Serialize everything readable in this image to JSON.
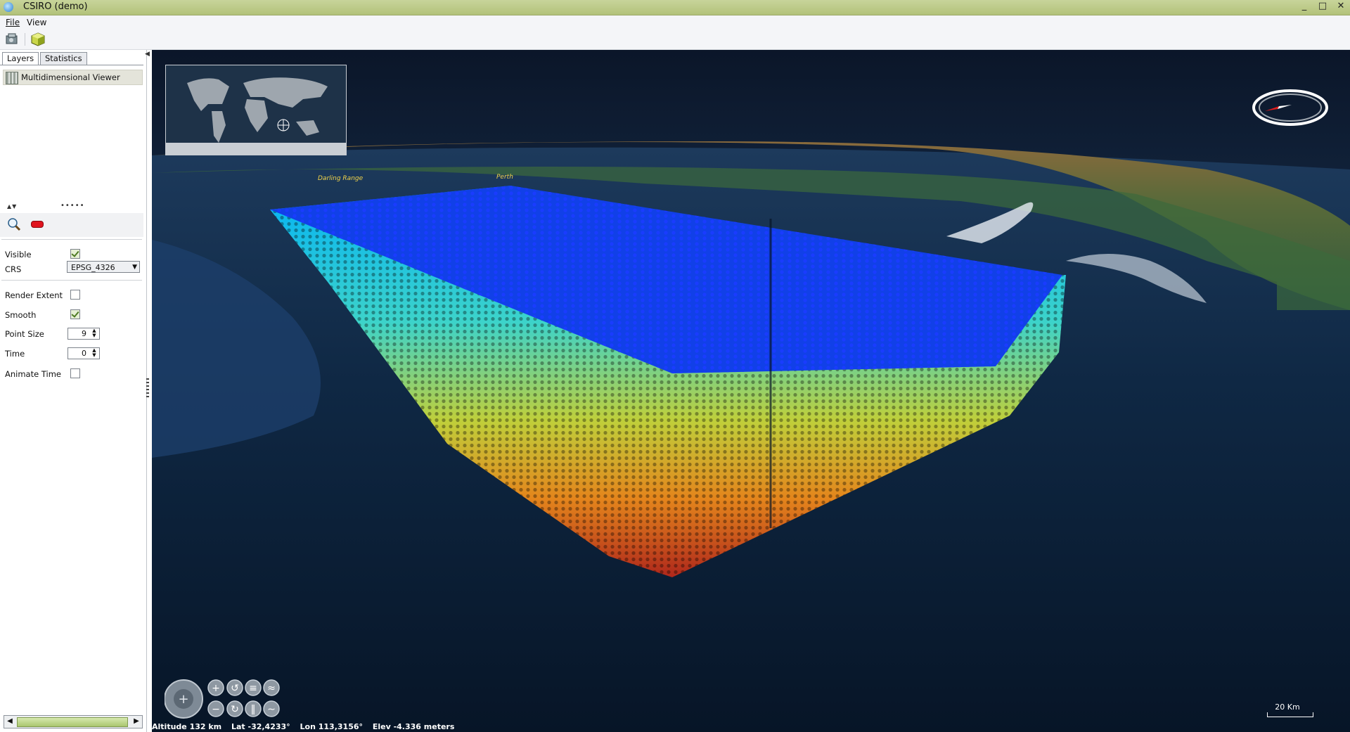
{
  "window": {
    "title": "CSIRO (demo)",
    "controls": [
      "_",
      "□",
      "✕"
    ]
  },
  "menu": {
    "file": "File",
    "view": "View"
  },
  "toolbar": {
    "btn1": "open-data-icon",
    "btn2": "cube-icon"
  },
  "left_panel": {
    "tabs": [
      {
        "label": "Layers",
        "active": true
      },
      {
        "label": "Statistics",
        "active": false
      }
    ],
    "layers": [
      {
        "label": "Multidimensional Viewer"
      }
    ],
    "properties": {
      "visible": {
        "label": "Visible",
        "checked": true
      },
      "crs": {
        "label": "CRS",
        "value": "EPSG_4326"
      },
      "render_extent": {
        "label": "Render Extent",
        "checked": false
      },
      "smooth": {
        "label": "Smooth",
        "checked": true
      },
      "point_size": {
        "label": "Point Size",
        "value": "9"
      },
      "time": {
        "label": "Time",
        "value": "0"
      },
      "animate_time": {
        "label": "Animate Time",
        "checked": false
      }
    }
  },
  "map": {
    "places": [
      "Darling Range",
      "Perth"
    ],
    "scale_label": "20 Km",
    "status": {
      "altitude": "Altitude 132 km",
      "lat": "Lat -32,4233°",
      "lon": "Lon 113,3156°",
      "elev": "Elev -4.336 meters"
    }
  }
}
